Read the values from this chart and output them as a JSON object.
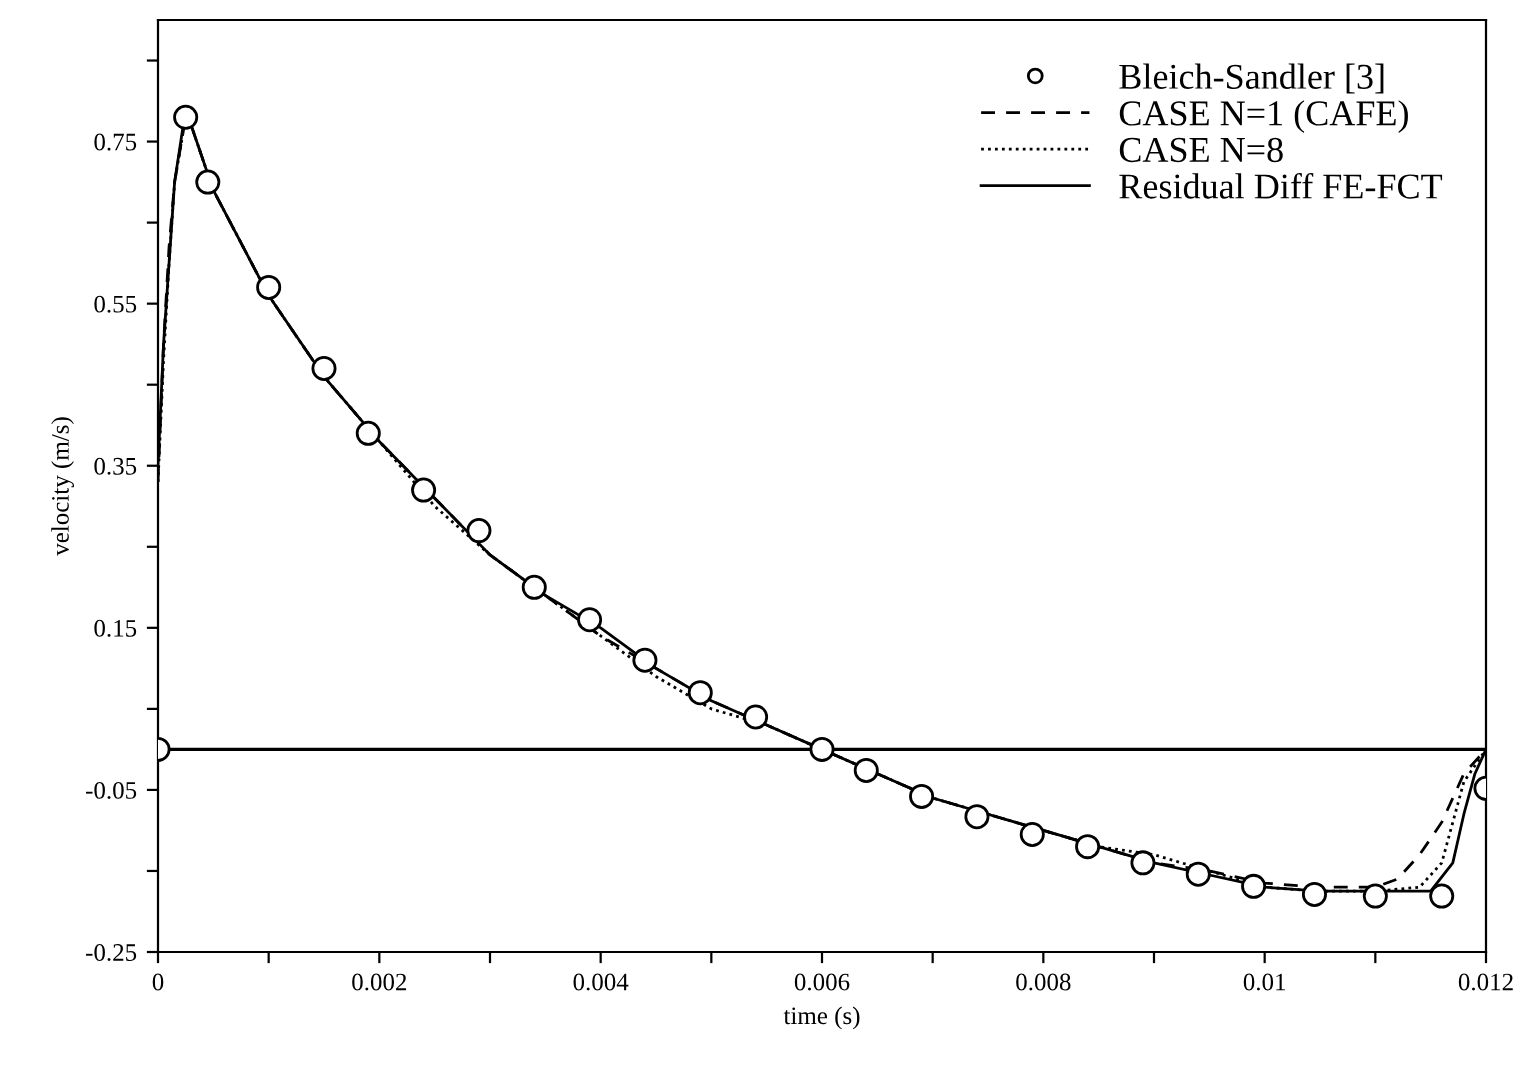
{
  "chart_data": {
    "type": "line",
    "xlabel": "time (s)",
    "ylabel": "velocity (m/s)",
    "xlim": [
      0,
      0.012
    ],
    "ylim": [
      -0.25,
      0.9
    ],
    "xticks": [
      0,
      {
        "value": 0.001,
        "label": null
      },
      0.002,
      {
        "value": 0.003,
        "label": null
      },
      0.004,
      {
        "value": 0.005,
        "label": null
      },
      0.006,
      {
        "value": 0.007,
        "label": null
      },
      0.008,
      {
        "value": 0.009,
        "label": null
      },
      0.01,
      {
        "value": 0.011,
        "label": null
      },
      0.012
    ],
    "yticks": [
      {
        "value": -0.25,
        "label": "-0.25"
      },
      {
        "value": -0.15,
        "label": null
      },
      {
        "value": -0.05,
        "label": "-0.05"
      },
      {
        "value": 0.05,
        "label": null
      },
      0.15,
      {
        "value": 0.25,
        "label": null
      },
      0.35,
      {
        "value": 0.45,
        "label": null
      },
      0.55,
      {
        "value": 0.65,
        "label": null
      },
      0.75,
      {
        "value": 0.85,
        "label": null
      }
    ],
    "grid": false,
    "legend": "top right",
    "ref_lines": [
      {
        "axis": "y",
        "value": 0,
        "color": "#000000"
      }
    ],
    "series": [
      {
        "name": "Bleich-Sandler [3]",
        "type": "scatter",
        "marker": "circle",
        "color": "#000000",
        "x": [
          0,
          0.00025,
          0.00045,
          0.001,
          0.0015,
          0.0019,
          0.0024,
          0.0029,
          0.0034,
          0.0039,
          0.0044,
          0.0049,
          0.0054,
          0.006,
          0.0064,
          0.0069,
          0.0074,
          0.0079,
          0.0084,
          0.0089,
          0.0094,
          0.0099,
          0.01045,
          0.011,
          0.0116,
          0.012
        ],
        "values": [
          0.0,
          0.78,
          0.7,
          0.57,
          0.47,
          0.39,
          0.32,
          0.27,
          0.2,
          0.16,
          0.11,
          0.07,
          0.04,
          0.0,
          -0.026,
          -0.058,
          -0.083,
          -0.105,
          -0.12,
          -0.14,
          -0.154,
          -0.169,
          -0.179,
          -0.181,
          -0.181,
          -0.048
        ]
      },
      {
        "name": "CASE N=1 (CAFE)",
        "line_style": "dashed",
        "color": "#000000",
        "x": [
          0,
          5e-05,
          0.0001,
          0.00015,
          0.00025,
          0.0003,
          0.0005,
          0.001,
          0.0015,
          0.002,
          0.0025,
          0.003,
          0.0035,
          0.004,
          0.0045,
          0.005,
          0.0055,
          0.006,
          0.0065,
          0.007,
          0.0075,
          0.008,
          0.0085,
          0.009,
          0.0095,
          0.01,
          0.0105,
          0.011,
          0.0112,
          0.0114,
          0.0116,
          0.0118,
          0.012
        ],
        "values": [
          0.33,
          0.5,
          0.62,
          0.7,
          0.78,
          0.77,
          0.69,
          0.56,
          0.46,
          0.38,
          0.31,
          0.24,
          0.19,
          0.14,
          0.1,
          0.06,
          0.03,
          0.0,
          -0.03,
          -0.06,
          -0.08,
          -0.1,
          -0.12,
          -0.14,
          -0.15,
          -0.165,
          -0.17,
          -0.17,
          -0.16,
          -0.13,
          -0.09,
          -0.03,
          0.0
        ]
      },
      {
        "name": "CASE N=8",
        "line_style": "dotted",
        "color": "#000000",
        "x": [
          0,
          5e-05,
          0.0001,
          0.00015,
          0.00025,
          0.0003,
          0.0005,
          0.001,
          0.0015,
          0.002,
          0.0025,
          0.003,
          0.0035,
          0.004,
          0.0045,
          0.005,
          0.0055,
          0.006,
          0.0065,
          0.007,
          0.0075,
          0.008,
          0.0085,
          0.009,
          0.0095,
          0.01,
          0.0105,
          0.011,
          0.0114,
          0.0116,
          0.0117,
          0.0118,
          0.012
        ],
        "values": [
          0.33,
          0.48,
          0.6,
          0.7,
          0.78,
          0.77,
          0.69,
          0.56,
          0.46,
          0.38,
          0.3,
          0.24,
          0.19,
          0.14,
          0.09,
          0.05,
          0.03,
          0.0,
          -0.03,
          -0.06,
          -0.08,
          -0.1,
          -0.12,
          -0.13,
          -0.15,
          -0.17,
          -0.175,
          -0.175,
          -0.17,
          -0.14,
          -0.09,
          -0.04,
          0.0
        ]
      },
      {
        "name": "Residual Diff FE-FCT",
        "line_style": "solid",
        "color": "#000000",
        "x": [
          0,
          5e-05,
          0.0001,
          0.00015,
          0.00025,
          0.0003,
          0.0005,
          0.001,
          0.0015,
          0.002,
          0.0025,
          0.003,
          0.0035,
          0.004,
          0.0045,
          0.005,
          0.0055,
          0.006,
          0.0065,
          0.007,
          0.0075,
          0.008,
          0.0085,
          0.009,
          0.0095,
          0.01,
          0.0105,
          0.011,
          0.0115,
          0.0117,
          0.0118,
          0.0119,
          0.012
        ],
        "values": [
          0.35,
          0.5,
          0.6,
          0.7,
          0.79,
          0.77,
          0.69,
          0.56,
          0.46,
          0.38,
          0.31,
          0.24,
          0.19,
          0.15,
          0.1,
          0.06,
          0.03,
          0.0,
          -0.03,
          -0.06,
          -0.08,
          -0.1,
          -0.12,
          -0.14,
          -0.155,
          -0.17,
          -0.175,
          -0.175,
          -0.175,
          -0.14,
          -0.08,
          -0.03,
          0.0
        ]
      }
    ]
  }
}
